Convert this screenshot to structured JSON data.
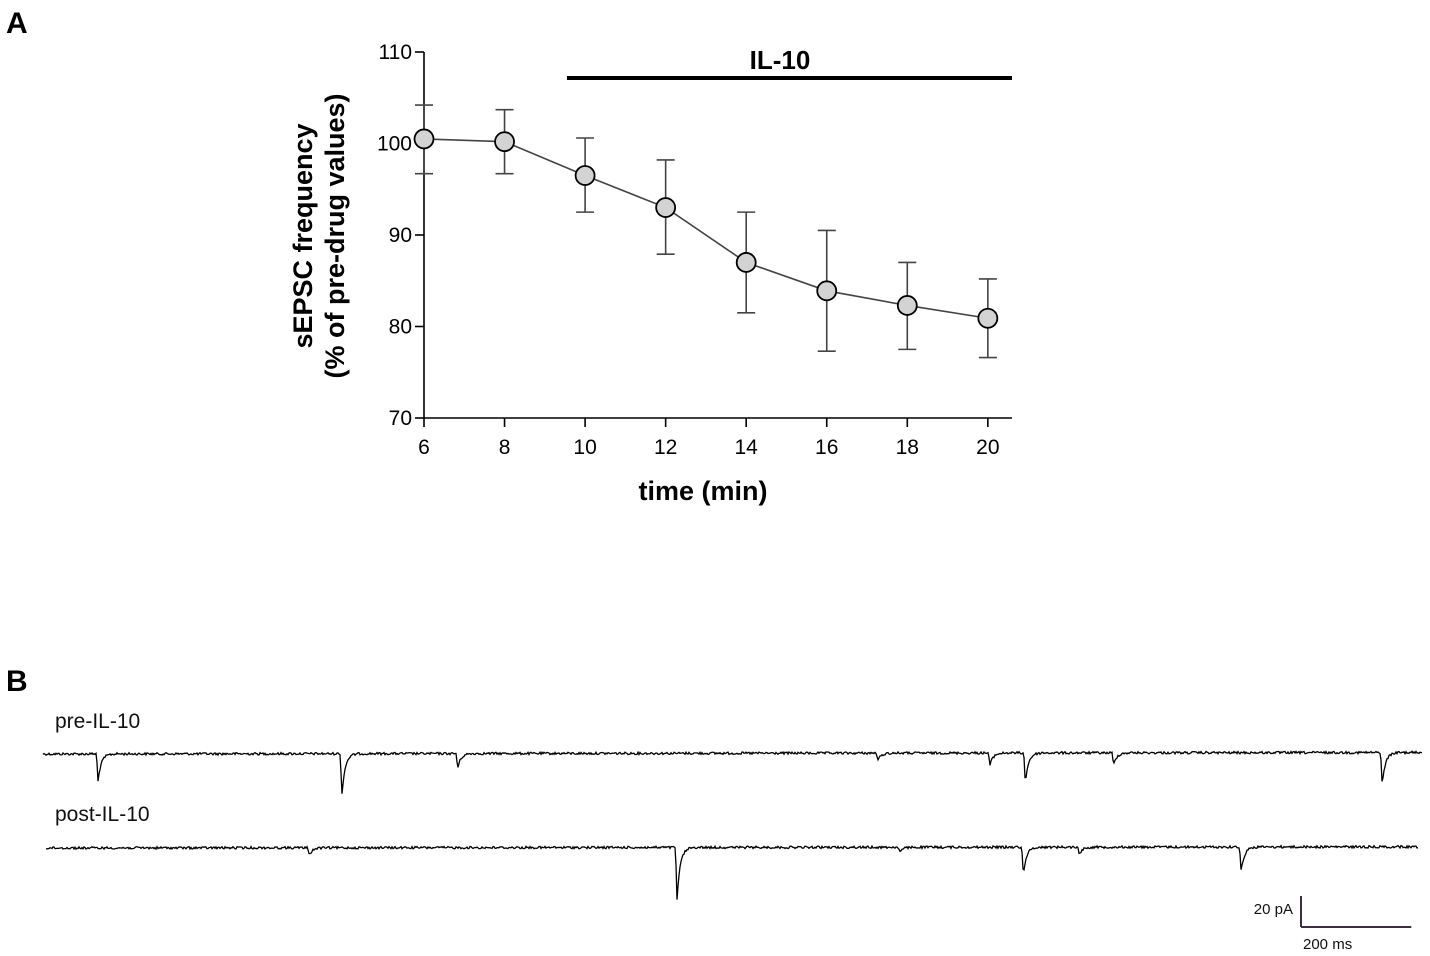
{
  "panels": {
    "a_label": "A",
    "b_label": "B"
  },
  "chart_data": {
    "type": "line",
    "xlabel": "time (min)",
    "ylabel_line1": "sEPSC frequency",
    "ylabel_line2": "(% of pre-drug values)",
    "xlim": [
      6,
      20.6
    ],
    "ylim": [
      70,
      110
    ],
    "x_ticks": [
      6,
      8,
      10,
      12,
      14,
      16,
      18,
      20
    ],
    "y_ticks": [
      70,
      80,
      90,
      100,
      110
    ],
    "series": [
      {
        "x": [
          6,
          8,
          10,
          12,
          14,
          16,
          18,
          20
        ],
        "values": [
          100.5,
          100.2,
          96.5,
          93.0,
          87.0,
          83.9,
          82.3,
          80.9
        ],
        "err_upper": [
          104.2,
          103.7,
          100.6,
          98.2,
          92.5,
          90.5,
          87.0,
          85.2
        ],
        "err_lower": [
          96.7,
          96.7,
          92.5,
          87.9,
          81.5,
          77.3,
          77.5,
          76.6
        ]
      }
    ],
    "treatment_bar": {
      "label": "IL-10",
      "x_start": 9.55,
      "x_end": 20.6
    },
    "colors": {
      "marker_fill": "#d3d3d3",
      "marker_stroke": "#000000",
      "line": "#444444",
      "error_bar": "#444444"
    }
  },
  "traces": [
    {
      "label": "pre-IL-10",
      "duration_ms": 2500,
      "events": [
        {
          "t_ms": 97,
          "amp_pa": 11
        },
        {
          "t_ms": 539,
          "amp_pa": 17
        },
        {
          "t_ms": 749,
          "amp_pa": 6
        },
        {
          "t_ms": 1511,
          "amp_pa": 3
        },
        {
          "t_ms": 1714,
          "amp_pa": 5
        },
        {
          "t_ms": 1778,
          "amp_pa": 12
        },
        {
          "t_ms": 1938,
          "amp_pa": 5
        },
        {
          "t_ms": 2425,
          "amp_pa": 13
        }
      ]
    },
    {
      "label": "post-IL-10",
      "duration_ms": 2500,
      "events": [
        {
          "t_ms": 477,
          "amp_pa": 3
        },
        {
          "t_ms": 1147,
          "amp_pa": 21
        },
        {
          "t_ms": 1553,
          "amp_pa": 2
        },
        {
          "t_ms": 1778,
          "amp_pa": 11
        },
        {
          "t_ms": 1880,
          "amp_pa": 3
        },
        {
          "t_ms": 2175,
          "amp_pa": 10
        }
      ]
    }
  ],
  "scale_bar": {
    "current_label": "20 pA",
    "time_label": "200 ms",
    "current_pa": 20,
    "time_ms": 200
  }
}
